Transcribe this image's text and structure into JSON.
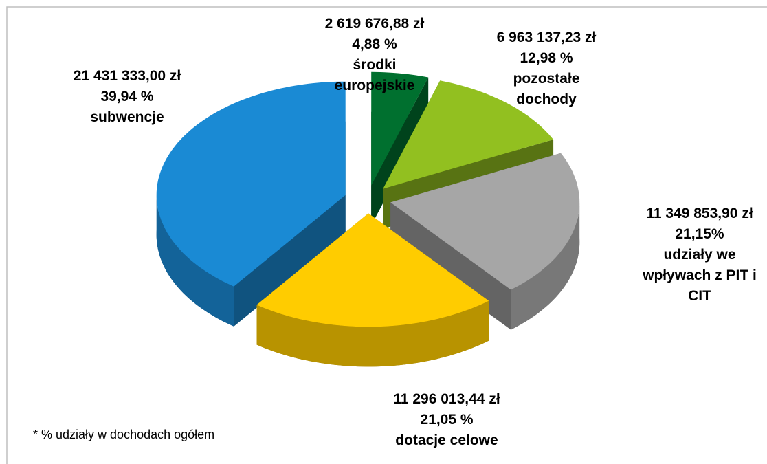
{
  "chart_data": {
    "type": "pie",
    "categories": [
      "środki europejskie",
      "pozostałe dochody",
      "udziały we wpływach z PIT i CIT",
      "dotacje celowe",
      "subwencje"
    ],
    "values": [
      4.88,
      12.98,
      21.15,
      21.05,
      39.94
    ],
    "value_labels": [
      "4,88 %",
      "12,98 %",
      "21,15%",
      "21,05 %",
      "39,94 %"
    ],
    "amounts": [
      2619676.88,
      6963137.23,
      11349853.9,
      11296013.44,
      21431333.0
    ],
    "amount_labels": [
      "2 619 676,88 zł",
      "6 963 137,23 zł",
      "11 349 853,90 zł",
      "11 296 013,44 zł",
      "21 431 333,00 zł"
    ],
    "colors": [
      "#00702f",
      "#92c020",
      "#a6a6a6",
      "#ffcc00",
      "#1a8ad4"
    ],
    "footnote": "* % udziały w dochodach ogółem"
  }
}
